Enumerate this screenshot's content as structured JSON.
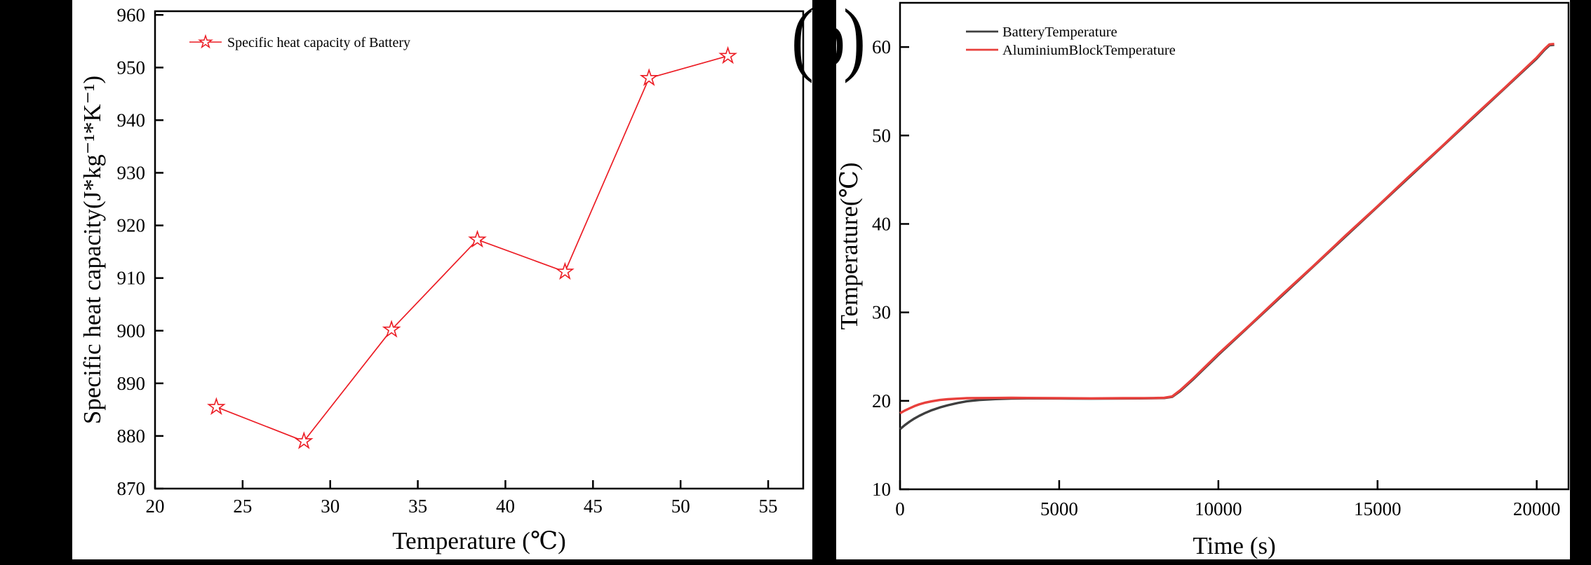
{
  "figure": {
    "panel_label": "(b)",
    "background_color": "#000000",
    "panel_color": "#ffffff"
  },
  "chart_data": [
    {
      "id": "a",
      "type": "line",
      "title": "",
      "xlabel": "Temperature (℃)",
      "ylabel": "Specific heat capacity(J*kg⁻¹*K⁻¹)",
      "xlim": [
        20,
        57
      ],
      "ylim": [
        870,
        960.7
      ],
      "xticks": [
        20,
        25,
        30,
        35,
        40,
        45,
        50,
        55
      ],
      "yticks": [
        870,
        880,
        890,
        900,
        910,
        920,
        930,
        940,
        950,
        960
      ],
      "grid": false,
      "legend_position": "top-left",
      "series": [
        {
          "name": "Specific heat capacity of Battery",
          "color": "#ec1c24",
          "marker": "open-star",
          "x": [
            23.5,
            28.5,
            33.5,
            38.4,
            43.4,
            48.2,
            52.7
          ],
          "y": [
            885.5,
            879.0,
            900.2,
            917.3,
            911.2,
            948.0,
            952.2
          ]
        }
      ]
    },
    {
      "id": "b",
      "type": "line",
      "title": "",
      "xlabel": "Time (s)",
      "ylabel": "Temperature(℃)",
      "xlim": [
        0,
        21000
      ],
      "ylim": [
        10,
        65
      ],
      "xticks": [
        0,
        5000,
        10000,
        15000,
        20000
      ],
      "yticks": [
        10,
        20,
        30,
        40,
        50,
        60
      ],
      "grid": false,
      "legend_position": "top-center",
      "series": [
        {
          "name": "BatteryTemperature",
          "color": "#3f3f3f",
          "marker": "none",
          "x": [
            0,
            150,
            300,
            450,
            600,
            800,
            1000,
            1250,
            1500,
            1800,
            2100,
            2500,
            3000,
            3500,
            4000,
            5000,
            6000,
            7000,
            7500,
            8000,
            8300,
            8550,
            8800,
            9200,
            10000,
            12000,
            14000,
            16000,
            18000,
            20000,
            20250,
            20400,
            20550
          ],
          "y": [
            16.8,
            17.25,
            17.65,
            18.0,
            18.3,
            18.65,
            18.95,
            19.25,
            19.5,
            19.75,
            19.95,
            20.1,
            20.2,
            20.26,
            20.28,
            20.27,
            20.25,
            20.27,
            20.28,
            20.3,
            20.32,
            20.45,
            21.1,
            22.4,
            25.2,
            31.9,
            38.6,
            45.3,
            52.0,
            58.7,
            59.7,
            60.2,
            60.25
          ]
        },
        {
          "name": "AluminiumBlockTemperature",
          "color": "#e8403c",
          "marker": "none",
          "x": [
            0,
            150,
            300,
            450,
            600,
            800,
            1000,
            1250,
            1500,
            1800,
            2100,
            2500,
            3000,
            3500,
            4000,
            5000,
            6000,
            7000,
            7500,
            8000,
            8300,
            8550,
            8800,
            9200,
            10000,
            11000,
            12000,
            13000,
            14000,
            15000,
            16000,
            17000,
            18000,
            19000,
            20000,
            20250,
            20400,
            20550
          ],
          "y": [
            18.6,
            18.9,
            19.15,
            19.4,
            19.6,
            19.8,
            19.95,
            20.1,
            20.18,
            20.25,
            20.3,
            20.32,
            20.33,
            20.34,
            20.33,
            20.3,
            20.28,
            20.3,
            20.31,
            20.32,
            20.35,
            20.5,
            21.2,
            22.5,
            25.3,
            28.6,
            32.0,
            35.3,
            38.7,
            42.0,
            45.4,
            48.7,
            52.1,
            55.4,
            58.8,
            59.8,
            60.3,
            60.35
          ]
        }
      ]
    }
  ]
}
